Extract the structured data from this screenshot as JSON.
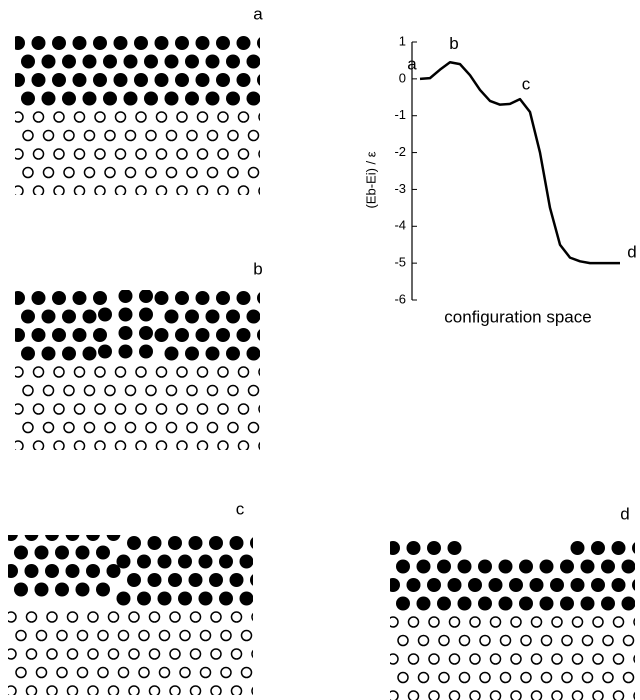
{
  "chart_data": {
    "type": "line",
    "xlabel": "configuration space",
    "ylabel": "(Eb-Ei) / ε",
    "x": [
      0,
      0.5,
      1,
      1.5,
      2,
      2.5,
      3,
      3.5,
      4,
      4.5,
      5,
      5.5,
      6,
      6.5,
      7,
      7.5,
      8,
      8.5,
      9,
      9.5,
      10
    ],
    "values": [
      0,
      0.02,
      0.25,
      0.45,
      0.4,
      0.1,
      -0.3,
      -0.6,
      -0.7,
      -0.68,
      -0.55,
      -0.9,
      -2.0,
      -3.5,
      -4.5,
      -4.85,
      -4.95,
      -5,
      -5,
      -5,
      -5
    ],
    "xlim": [
      0,
      10
    ],
    "ylim": [
      -6,
      1
    ],
    "yticks": [
      -6,
      -5,
      -4,
      -3,
      -2,
      -1,
      0,
      1
    ],
    "annotations": [
      "a",
      "b",
      "c",
      "d"
    ],
    "color": "#000000"
  },
  "panels": [
    {
      "label": "a"
    },
    {
      "label": "b"
    },
    {
      "label": "c"
    },
    {
      "label": "d"
    }
  ]
}
